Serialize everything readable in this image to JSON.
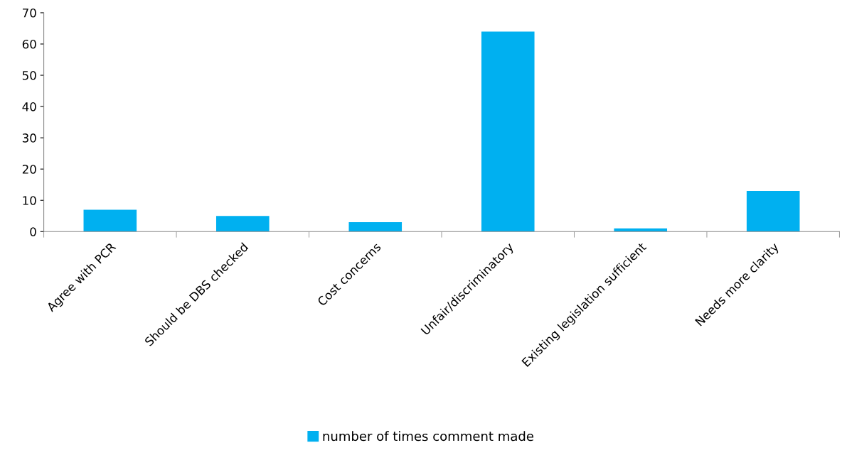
{
  "chart_data": {
    "type": "bar",
    "categories": [
      "Agree with PCR",
      "Should be DBS checked",
      "Cost concerns",
      "Unfair/discriminatory",
      "Existing legislation sufficient",
      "Needs more clarity"
    ],
    "series": [
      {
        "name": "number of times comment made",
        "color": "#00b0f0",
        "values": [
          7,
          5,
          3,
          64,
          1,
          13
        ]
      }
    ],
    "ylim": [
      0,
      70
    ],
    "yticks": [
      0,
      10,
      20,
      30,
      40,
      50,
      60,
      70
    ],
    "grid": false,
    "legend": "bottom"
  }
}
